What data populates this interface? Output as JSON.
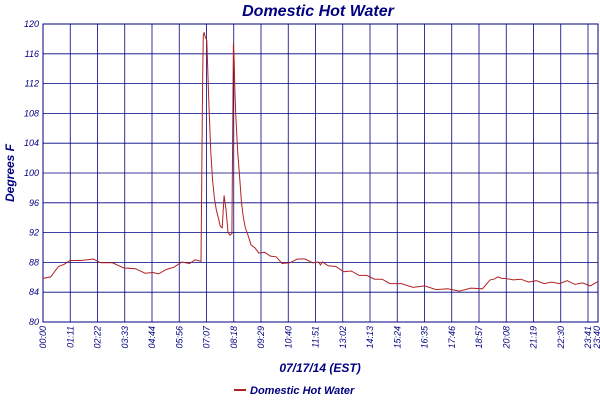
{
  "chart_data": {
    "type": "line",
    "title": "Domestic Hot Water",
    "xlabel": "07/17/14 (EST)",
    "ylabel": "Degrees F",
    "ylim": [
      80,
      120
    ],
    "yticks": [
      80,
      84,
      88,
      92,
      96,
      100,
      104,
      108,
      112,
      116,
      120
    ],
    "xlim_minutes": [
      0,
      1440
    ],
    "xtick_labels": [
      "00:00",
      "01:11",
      "02:22",
      "03:33",
      "04:44",
      "05:56",
      "07:07",
      "08:18",
      "09:29",
      "10:40",
      "11:51",
      "13:02",
      "14:13",
      "15:24",
      "16:35",
      "17:46",
      "18:57",
      "20:08",
      "21:19",
      "22:30",
      "23:41",
      "23:40"
    ],
    "grid": true,
    "legend": {
      "position": "bottom-left",
      "entries": [
        "Domestic Hot Water"
      ]
    },
    "colors": {
      "line": "#b22222",
      "grid": "#000080",
      "text": "#000080"
    },
    "series": [
      {
        "name": "Domestic Hot Water",
        "x_minutes": [
          0,
          20,
          40,
          55,
          70,
          100,
          130,
          150,
          180,
          210,
          240,
          265,
          285,
          300,
          320,
          340,
          360,
          380,
          395,
          410,
          414,
          416,
          418,
          420,
          425,
          430,
          435,
          440,
          445,
          450,
          455,
          460,
          465,
          470,
          475,
          480,
          485,
          490,
          492,
          494,
          496,
          498,
          500,
          505,
          510,
          515,
          520,
          525,
          530,
          540,
          550,
          560,
          575,
          590,
          605,
          620,
          640,
          660,
          680,
          700,
          715,
          720,
          725,
          740,
          760,
          780,
          800,
          820,
          840,
          860,
          880,
          900,
          930,
          960,
          990,
          1020,
          1050,
          1080,
          1110,
          1140,
          1160,
          1170,
          1180,
          1190,
          1200,
          1220,
          1240,
          1260,
          1280,
          1300,
          1320,
          1340,
          1360,
          1380,
          1400,
          1420,
          1440
        ],
        "values": [
          85.7,
          86.2,
          87.3,
          87.9,
          88.1,
          88.4,
          88.3,
          88.1,
          87.8,
          87.4,
          87.0,
          86.7,
          86.5,
          86.6,
          86.9,
          87.5,
          87.9,
          88.0,
          88.2,
          88.3,
          112.0,
          118.5,
          118.9,
          118.4,
          117.8,
          110.0,
          103.0,
          99.0,
          96.5,
          95.0,
          93.8,
          93.0,
          92.5,
          97.0,
          95.0,
          92.2,
          91.5,
          92.0,
          104.0,
          117.4,
          115.0,
          111.0,
          108.0,
          103.0,
          99.5,
          96.0,
          94.0,
          92.8,
          91.8,
          90.5,
          89.8,
          89.4,
          89.2,
          89.0,
          88.6,
          88.0,
          87.8,
          88.6,
          88.3,
          88.1,
          87.9,
          87.8,
          87.9,
          87.7,
          87.3,
          86.9,
          86.7,
          86.4,
          86.1,
          85.9,
          85.6,
          85.3,
          85.0,
          84.8,
          84.7,
          84.5,
          84.3,
          84.3,
          84.4,
          84.6,
          85.5,
          85.9,
          85.9,
          86.0,
          85.7,
          85.8,
          85.6,
          85.5,
          85.4,
          85.3,
          85.2,
          85.3,
          85.4,
          85.2,
          85.1,
          85.0,
          85.3
        ]
      }
    ]
  }
}
